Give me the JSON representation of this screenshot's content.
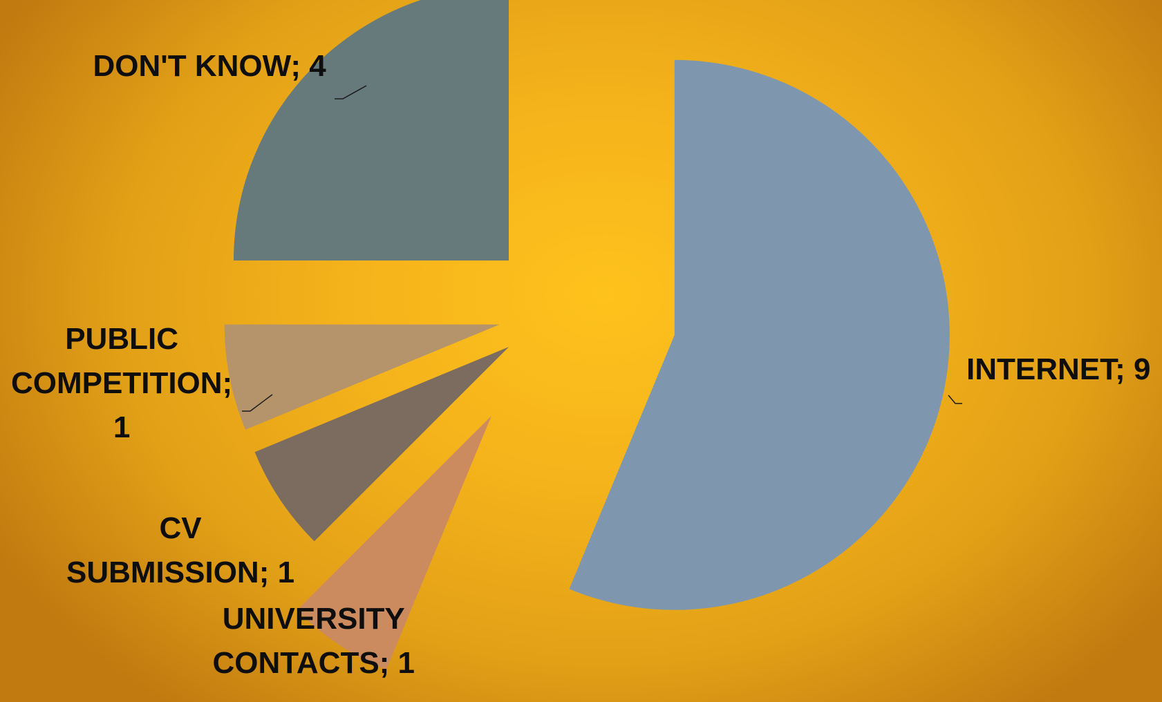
{
  "chart_data": {
    "type": "pie",
    "title": "",
    "slices": [
      {
        "label": "INTERNET",
        "value": 9,
        "data_label": "INTERNET; 9",
        "label_lines": [
          "INTERNET; 9"
        ],
        "color": "#7f97ae"
      },
      {
        "label": "UNIVERSITY CONTACTS",
        "value": 1,
        "data_label": "UNIVERSITY CONTACTS; 1",
        "label_lines": [
          "UNIVERSITY",
          "CONTACTS; 1"
        ],
        "color": "#cb8b5f"
      },
      {
        "label": "CV SUBMISSION",
        "value": 1,
        "data_label": "CV SUBMISSION; 1",
        "label_lines": [
          "CV",
          "SUBMISSION; 1"
        ],
        "color": "#7c6c60"
      },
      {
        "label": "PUBLIC COMPETITION",
        "value": 1,
        "data_label": "PUBLIC COMPETITION; 1",
        "label_lines": [
          "PUBLIC",
          "COMPETITION;",
          "1"
        ],
        "color": "#b5946b"
      },
      {
        "label": "DON'T KNOW",
        "value": 4,
        "data_label": "DON'T KNOW; 4",
        "label_lines": [
          "DON'T KNOW; 4"
        ],
        "color": "#66797b"
      }
    ],
    "legend": "none",
    "exploded": true,
    "leader_line_color": "#1a1a1a"
  }
}
